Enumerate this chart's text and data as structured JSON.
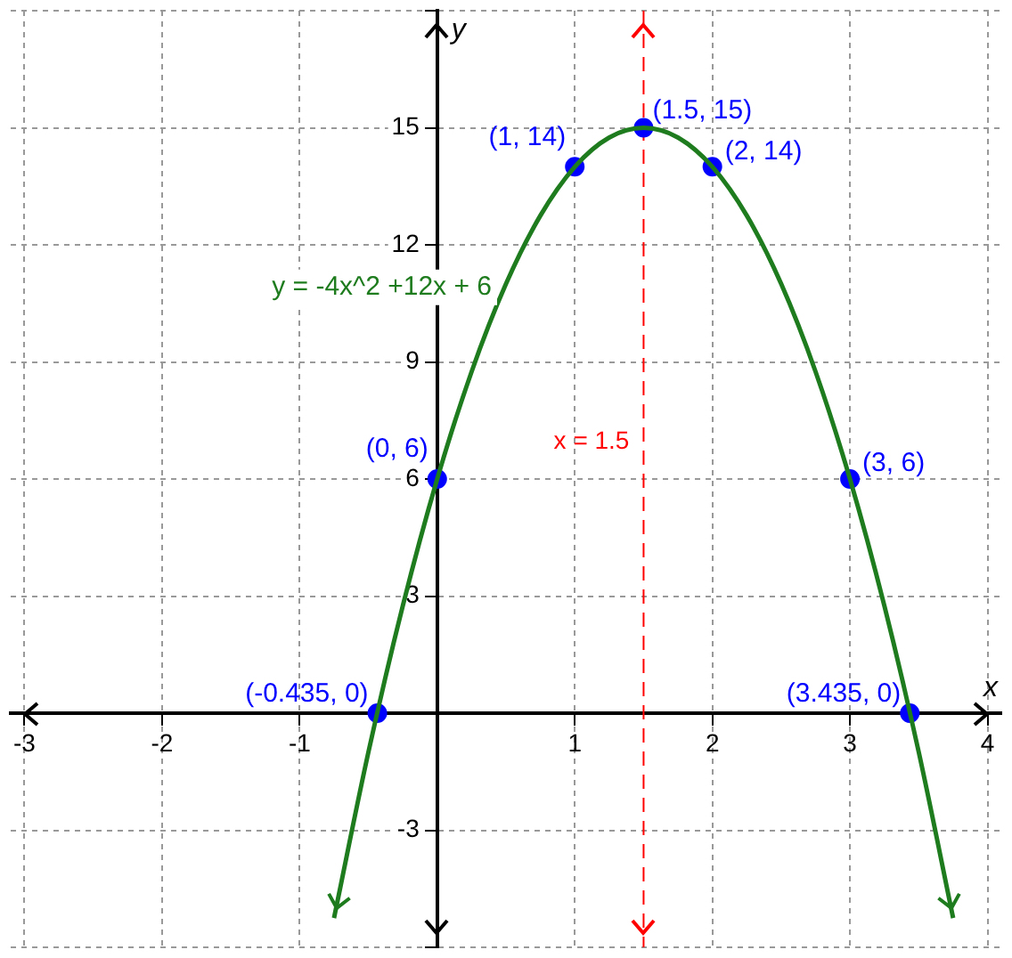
{
  "chart_data": {
    "type": "line",
    "xlabel": "x",
    "ylabel": "y",
    "xlim": [
      -3.1,
      4.1
    ],
    "ylim": [
      -6,
      18
    ],
    "xticks": [
      -3,
      -2,
      -1,
      1,
      2,
      3,
      4
    ],
    "yticks": [
      {
        "value": -6,
        "label": null
      },
      -3,
      3,
      6,
      9,
      12,
      15,
      {
        "value": 18,
        "label": null
      }
    ],
    "grid": true,
    "legend": false,
    "series": [
      {
        "name": "y = -4x^2 +12x + 6",
        "color": "#1e7b1e",
        "marker": "none",
        "x": [
          -0.75,
          -0.5,
          -0.25,
          0,
          0.25,
          0.5,
          0.75,
          1,
          1.25,
          1.5,
          1.75,
          2,
          2.25,
          2.5,
          2.75,
          3,
          3.25,
          3.5,
          3.75
        ],
        "values": [
          -5.25,
          -1,
          2.75,
          6,
          8.75,
          11,
          12.75,
          14,
          14.75,
          15,
          14.75,
          14,
          12.75,
          11,
          8.75,
          6,
          2.75,
          -1,
          -5.25
        ]
      },
      {
        "type": "scatter",
        "color": "#0000ff",
        "marker": "circle",
        "x": [
          -0.435,
          0,
          1,
          1.5,
          2,
          3,
          3.435
        ],
        "values": [
          0,
          6,
          14,
          15,
          14,
          6,
          0
        ],
        "value_labels": [
          "(-0.435, 0)",
          "(0, 6)",
          "(1, 14)",
          "(1.5, 15)",
          "(2, 14)",
          "(3, 6)",
          "(3.435, 0)"
        ]
      }
    ],
    "ref_lines": [
      {
        "axis": "x",
        "value": 1.5,
        "label": "x = 1.5",
        "color": "#ff0000",
        "line_style": "dashed"
      }
    ]
  }
}
